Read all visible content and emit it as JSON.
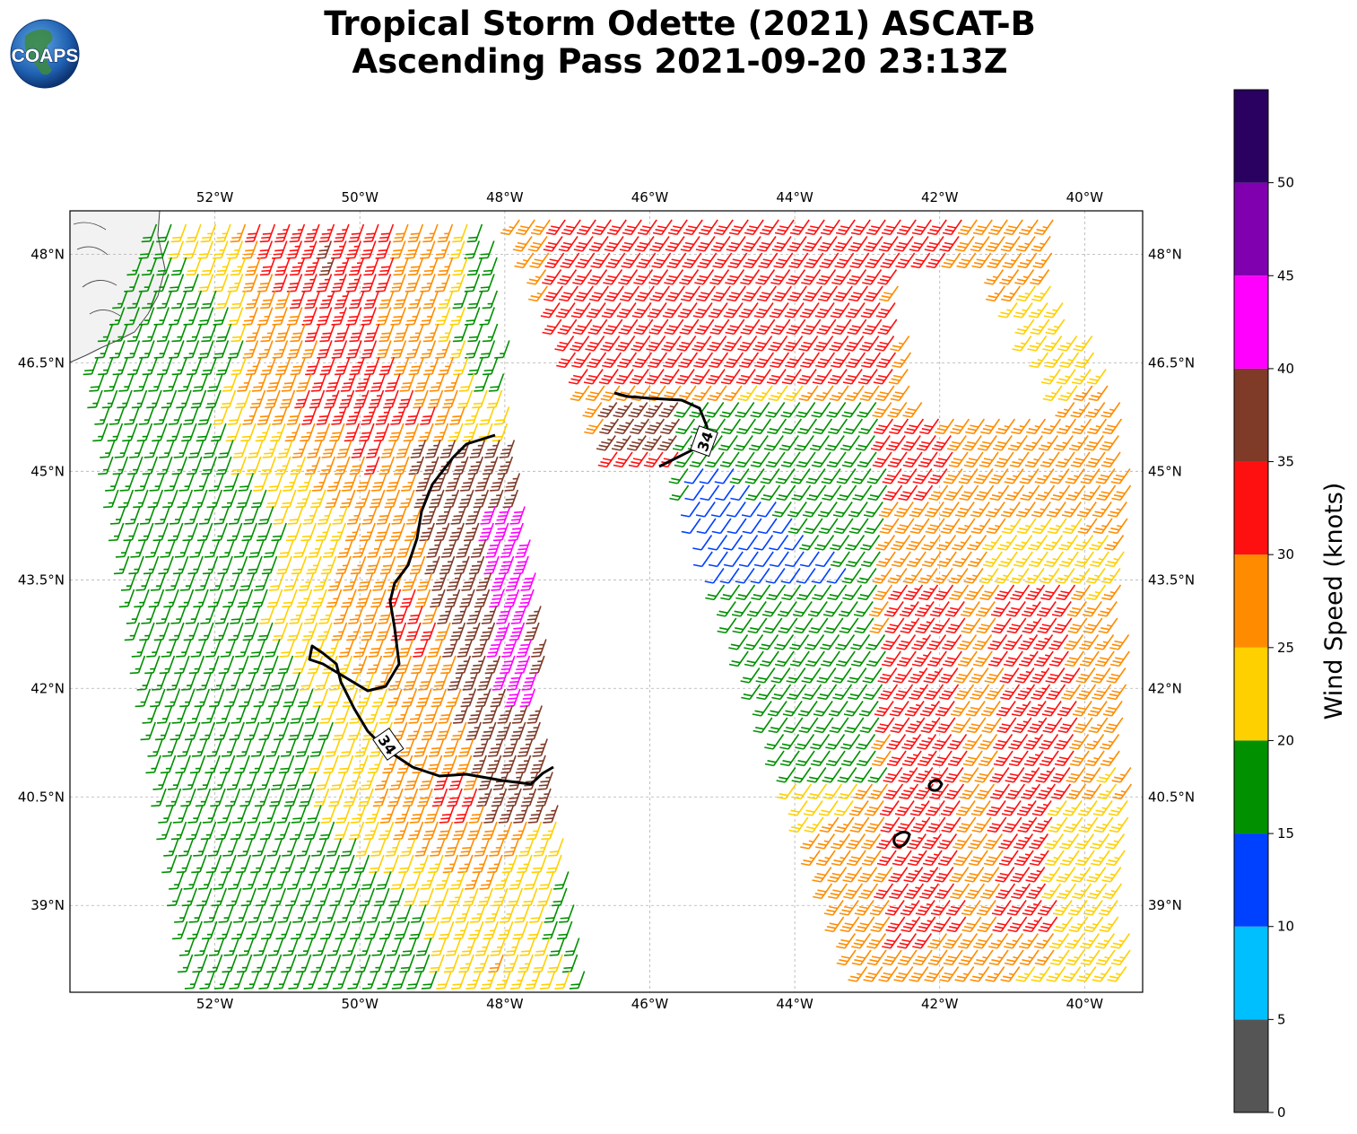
{
  "title": {
    "line1": "Tropical Storm Odette (2021) ASCAT-B",
    "line2": "Ascending Pass 2021-09-20 23:13Z"
  },
  "logo": {
    "text": "COAPS",
    "icon": "globe-icon"
  },
  "colors": {
    "contour": "#000000",
    "grid": "#b0b0b0",
    "land": "#f2f2f2",
    "coast": "#444444"
  },
  "map": {
    "lon_range": [
      -54.0,
      -39.2
    ],
    "lat_range": [
      37.8,
      48.6
    ],
    "lon_ticks": [
      {
        "value": -52,
        "label": "52°W"
      },
      {
        "value": -50,
        "label": "50°W"
      },
      {
        "value": -48,
        "label": "48°W"
      },
      {
        "value": -46,
        "label": "46°W"
      },
      {
        "value": -44,
        "label": "44°W"
      },
      {
        "value": -42,
        "label": "42°W"
      },
      {
        "value": -40,
        "label": "40°W"
      }
    ],
    "lat_ticks": [
      {
        "value": 48.0,
        "label": "48°N"
      },
      {
        "value": 46.5,
        "label": "46.5°N"
      },
      {
        "value": 45.0,
        "label": "45°N"
      },
      {
        "value": 43.5,
        "label": "43.5°N"
      },
      {
        "value": 42.0,
        "label": "42°N"
      },
      {
        "value": 40.5,
        "label": "40.5°N"
      },
      {
        "value": 39.0,
        "label": "39°N"
      }
    ],
    "contour_label": "34"
  },
  "colorbar": {
    "label": "Wind Speed (knots)",
    "bins": [
      {
        "min": 0,
        "max": 5,
        "color": "#555555"
      },
      {
        "min": 5,
        "max": 10,
        "color": "#00bfff"
      },
      {
        "min": 10,
        "max": 15,
        "color": "#0040ff"
      },
      {
        "min": 15,
        "max": 20,
        "color": "#009000"
      },
      {
        "min": 20,
        "max": 25,
        "color": "#ffd000"
      },
      {
        "min": 25,
        "max": 30,
        "color": "#ff8c00"
      },
      {
        "min": 30,
        "max": 35,
        "color": "#ff1010"
      },
      {
        "min": 35,
        "max": 40,
        "color": "#7f3a28"
      },
      {
        "min": 40,
        "max": 45,
        "color": "#ff00ff"
      },
      {
        "min": 45,
        "max": 50,
        "color": "#8000b0"
      },
      {
        "min": 50,
        "max": 55,
        "color": "#2a0060"
      }
    ],
    "ticks": [
      "0",
      "5",
      "10",
      "15",
      "20",
      "25",
      "30",
      "35",
      "40",
      "45",
      "50"
    ]
  }
}
